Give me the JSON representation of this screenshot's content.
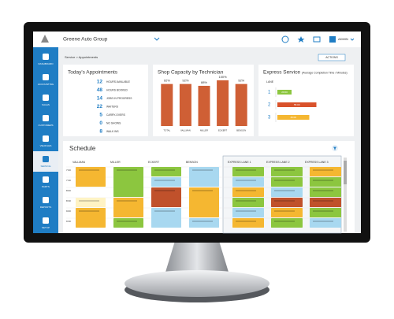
{
  "topbar": {
    "company": "Greene Auto Group",
    "user": "ADMIN"
  },
  "sidebar": {
    "items": [
      "DASHBOARD",
      "ACCOUNTING",
      "SALES",
      "CUSTOMERS",
      "VEHICLES",
      "SERVICE",
      "PARTS",
      "REPORTS",
      "SETUP"
    ],
    "active": 5
  },
  "breadcrumb": "Service > Appointments",
  "actions": "ACTIONS",
  "appointments": {
    "title": "Today's Appointments",
    "rows": [
      {
        "value": 12,
        "label": "HOURS AVAILABLE"
      },
      {
        "value": 48,
        "label": "HOURS BOOKED"
      },
      {
        "value": 14,
        "label": "JOBS IN PROGRESS"
      },
      {
        "value": 22,
        "label": "WAITERS"
      },
      {
        "value": 5,
        "label": "CARRY-OVERS"
      },
      {
        "value": 0,
        "label": "NO SHOWS"
      },
      {
        "value": 8,
        "label": "WALK INS"
      }
    ]
  },
  "shop_capacity": {
    "type": "bar",
    "title": "Shop Capacity by Technician",
    "categories": [
      "TOTAL",
      "VALLMAN",
      "MILLER",
      "ECKERT",
      "BENSON"
    ],
    "values": [
      92,
      92,
      88,
      100,
      92
    ],
    "value_labels": [
      "92%",
      "92%",
      "88%",
      "100%",
      "92%"
    ],
    "color": "#cf5f35"
  },
  "express": {
    "type": "bar",
    "title": "Express Service",
    "subtitle": "(Average Completion Time / Minutes)",
    "axis_label": "LANE",
    "categories": [
      "1",
      "2",
      "3"
    ],
    "values": [
      20,
      55,
      45
    ],
    "value_labels": [
      "20:00",
      "55:00",
      "45:00"
    ],
    "colors": [
      "#8cc63f",
      "#d9522b",
      "#f5b731"
    ]
  },
  "schedule": {
    "title": "Schedule",
    "technicians": [
      "VALLMAN",
      "MILLER",
      "ECKERT",
      "BENSON"
    ],
    "lanes": [
      "EXPRESS LANE 1",
      "EXPRESS LANE 2",
      "EXPRESS LANE 3"
    ],
    "times": [
      "7:00",
      "7:30",
      "8:00",
      "8:30",
      "9:00",
      "9:30"
    ]
  }
}
